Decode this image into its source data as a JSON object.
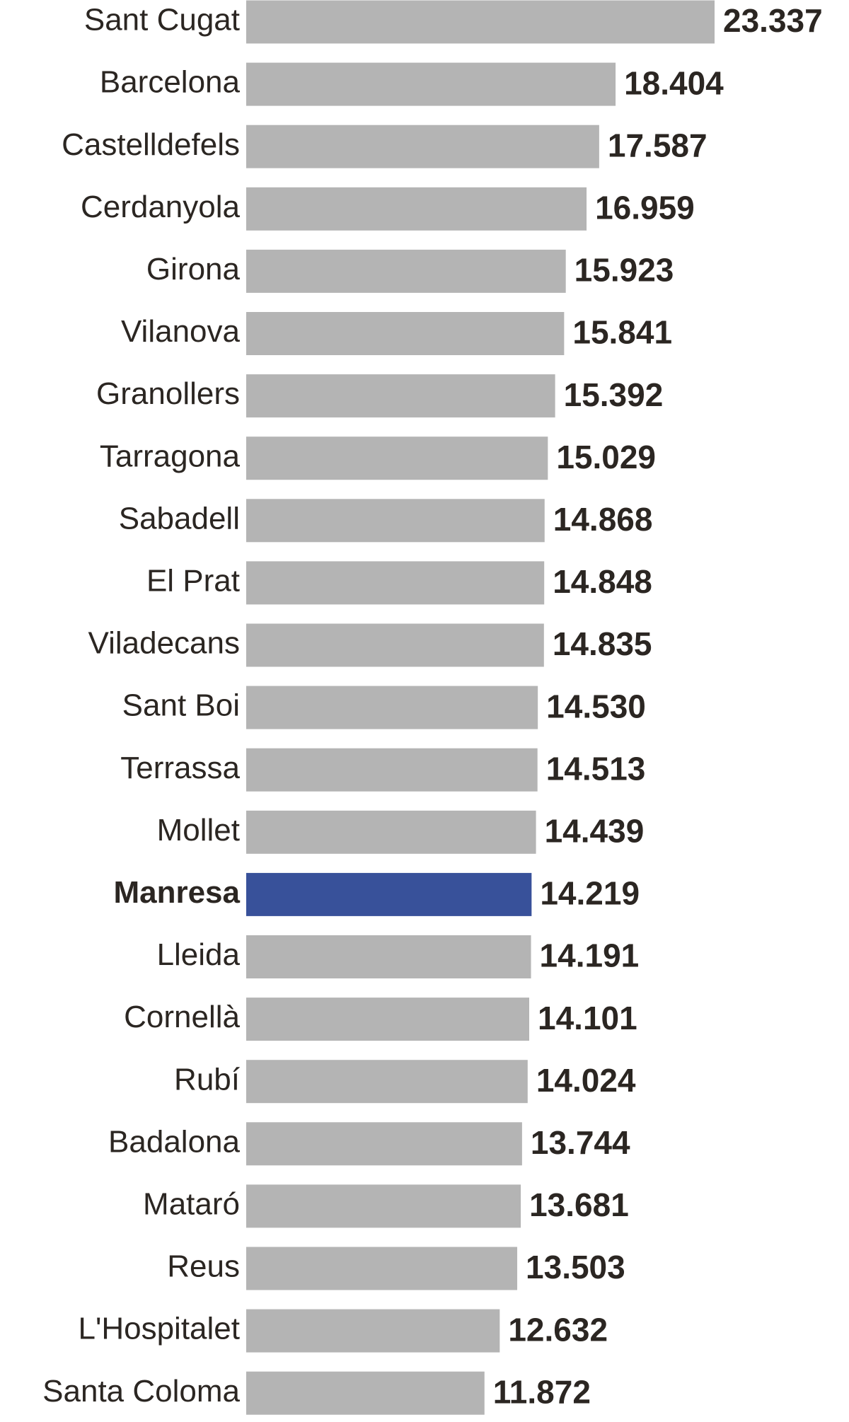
{
  "chart_data": {
    "type": "bar",
    "orientation": "horizontal",
    "categories": [
      "Sant Cugat",
      "Barcelona",
      "Castelldefels",
      "Cerdanyola",
      "Girona",
      "Vilanova",
      "Granollers",
      "Tarragona",
      "Sabadell",
      "El Prat",
      "Viladecans",
      "Sant Boi",
      "Terrassa",
      "Mollet",
      "Manresa",
      "Lleida",
      "Cornellà",
      "Rubí",
      "Badalona",
      "Mataró",
      "Reus",
      "L'Hospitalet",
      "Santa Coloma"
    ],
    "values": [
      23337,
      18404,
      17587,
      16959,
      15923,
      15841,
      15392,
      15029,
      14868,
      14848,
      14835,
      14530,
      14513,
      14439,
      14219,
      14191,
      14101,
      14024,
      13744,
      13681,
      13503,
      12632,
      11872
    ],
    "value_labels": [
      "23.337",
      "18.404",
      "17.587",
      "16.959",
      "15.923",
      "15.841",
      "15.392",
      "15.029",
      "14.868",
      "14.848",
      "14.835",
      "14.530",
      "14.513",
      "14.439",
      "14.219",
      "14.191",
      "14.101",
      "14.024",
      "13.744",
      "13.681",
      "13.503",
      "12.632",
      "11.872"
    ],
    "color": "#b4b4b4",
    "colors": [
      "#b4b4b4",
      "#b4b4b4",
      "#b4b4b4",
      "#b4b4b4",
      "#b4b4b4",
      "#b4b4b4",
      "#b4b4b4",
      "#b4b4b4",
      "#b4b4b4",
      "#b4b4b4",
      "#b4b4b4",
      "#b4b4b4",
      "#b4b4b4",
      "#b4b4b4",
      "#38519a",
      "#b4b4b4",
      "#b4b4b4",
      "#b4b4b4",
      "#b4b4b4",
      "#b4b4b4",
      "#b4b4b4",
      "#b4b4b4",
      "#b4b4b4"
    ]
  }
}
